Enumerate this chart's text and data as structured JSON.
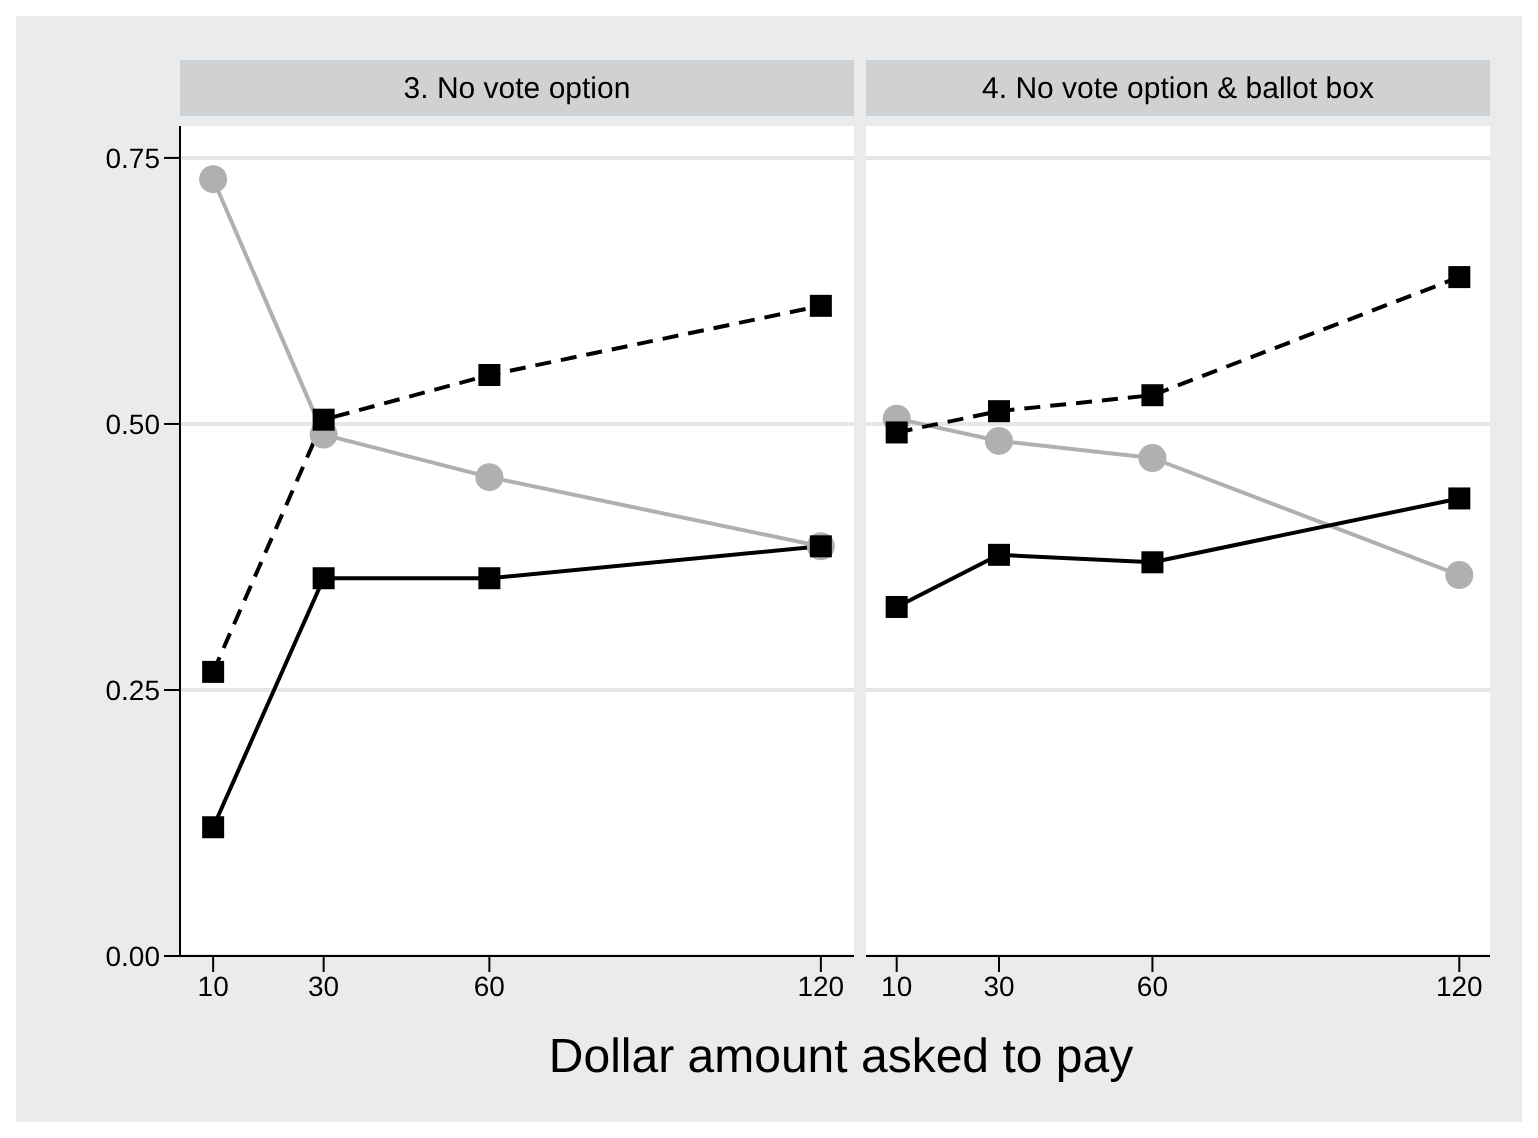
{
  "chart_data": [
    {
      "type": "line",
      "title": "3. No vote option",
      "xlabel": "Dollar amount asked to pay",
      "x": [
        10,
        30,
        60,
        120
      ],
      "xlim": [
        4,
        126
      ],
      "xticks": [
        10,
        30,
        60,
        120
      ],
      "ylim": [
        0,
        0.78
      ],
      "yticks": [
        {
          "value": 0,
          "label": "0.00"
        },
        {
          "value": 0.25,
          "label": "0.25"
        },
        {
          "value": 0.5,
          "label": "0.50"
        },
        {
          "value": 0.75,
          "label": "0.75"
        }
      ],
      "grid": "y",
      "legend": false,
      "series": [
        {
          "color": "#b0b0b0",
          "marker": "circle",
          "line_style": "solid",
          "values": [
            0.73,
            0.49,
            0.45,
            0.385
          ]
        },
        {
          "color": "#000000",
          "marker": "square",
          "line_style": "dashed",
          "values": [
            0.267,
            0.504,
            0.546,
            0.611
          ]
        },
        {
          "color": "#000000",
          "marker": "square",
          "line_style": "solid",
          "values": [
            0.121,
            0.355,
            0.355,
            0.385
          ]
        }
      ]
    },
    {
      "type": "line",
      "title": "4. No vote option & ballot box",
      "x": [
        10,
        30,
        60,
        120
      ],
      "xlim": [
        4,
        126
      ],
      "xticks": [
        10,
        30,
        60,
        120
      ],
      "ylim": [
        0,
        0.78
      ],
      "yticks": [
        0,
        0.25,
        0.5,
        0.75
      ],
      "grid": "y",
      "legend": false,
      "tick_labels": "x",
      "series": [
        {
          "color": "#b0b0b0",
          "marker": "circle",
          "line_style": "solid",
          "values": [
            0.505,
            0.484,
            0.468,
            0.358
          ]
        },
        {
          "color": "#000000",
          "marker": "square",
          "line_style": "dashed",
          "values": [
            0.492,
            0.512,
            0.527,
            0.638
          ]
        },
        {
          "color": "#000000",
          "marker": "square",
          "line_style": "solid",
          "values": [
            0.328,
            0.377,
            0.37,
            0.43
          ]
        }
      ]
    }
  ]
}
